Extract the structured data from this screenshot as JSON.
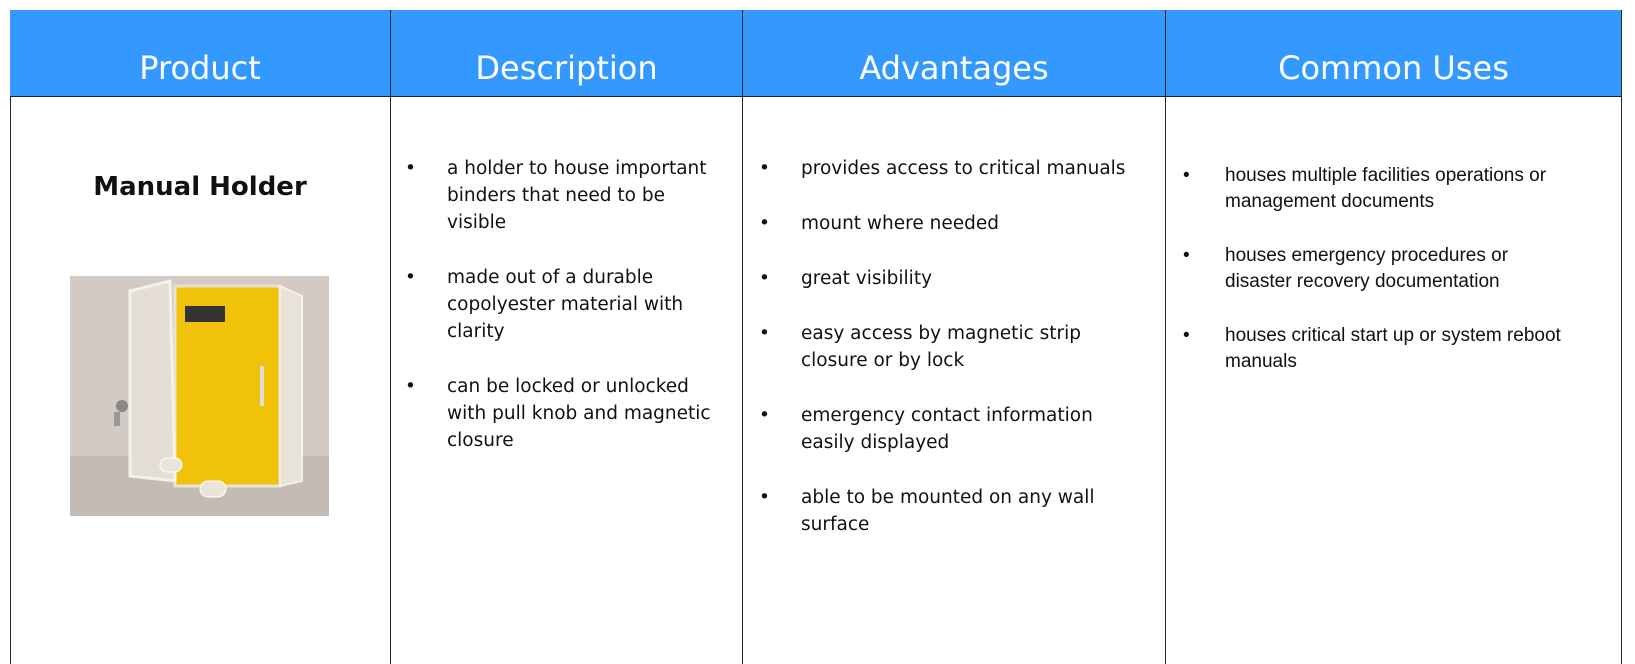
{
  "table": {
    "headers": [
      "Product",
      "Description",
      "Advantages",
      "Common Uses"
    ],
    "rows": [
      {
        "product": "Manual Holder",
        "description": [
          "a holder to house important binders that need to be visible",
          "made out of a durable copolyester material with clarity",
          "can be locked or unlocked with pull knob and magnetic closure"
        ],
        "advantages": [
          "provides access to critical manuals",
          "mount where needed",
          "great visibility",
          "easy access by magnetic strip closure or by lock",
          "emergency contact information easily displayed",
          "able to be mounted on any wall surface"
        ],
        "uses": [
          "houses multiple facilities operations or management documents",
          "houses emergency procedures or disaster recovery documentation",
          "houses critical start up or system reboot manuals"
        ]
      }
    ]
  }
}
